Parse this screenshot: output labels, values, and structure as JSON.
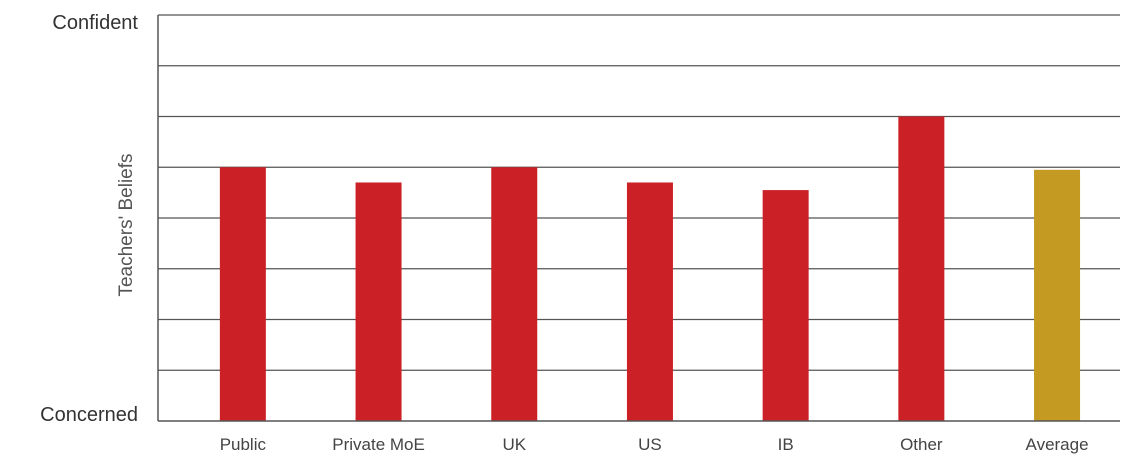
{
  "chart_data": {
    "type": "bar",
    "ylabel": "Teachers' Beliefs",
    "xlabel": "",
    "ylim": [
      0,
      8
    ],
    "grid": true,
    "y_top_label": "Confident",
    "y_bottom_label": "Concerned",
    "categories": [
      "Public",
      "Private MoE",
      "UK",
      "US",
      "IB",
      "Other",
      "Average"
    ],
    "values": [
      5.0,
      4.7,
      5.0,
      4.7,
      4.55,
      6.0,
      4.95
    ],
    "bar_colors": [
      "#cc2027",
      "#cc2027",
      "#cc2027",
      "#cc2027",
      "#cc2027",
      "#cc2027",
      "#c49a22"
    ],
    "series": [
      {
        "name": "",
        "values": [
          5.0,
          4.7,
          5.0,
          4.7,
          4.55,
          6.0,
          4.95
        ]
      }
    ]
  }
}
